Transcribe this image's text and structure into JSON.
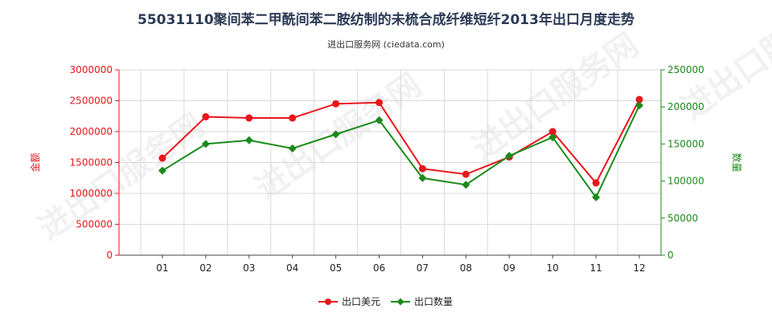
{
  "title": "55031110聚间苯二甲酰间苯二胺纺制的未梳合成纤维短纤2013年出口月度走势",
  "subtitle": "进出口服务网 (ciedata.com)",
  "watermark": "进出口服务网",
  "colors": {
    "value": "#e8161b",
    "quantity": "#1b8a1b",
    "grid": "#d9d9d9",
    "axis": "#444444"
  },
  "chart_data": {
    "type": "line",
    "title": "55031110聚间苯二甲酰间苯二胺纺制的未梳合成纤维短纤2013年出口月度走势",
    "categories": [
      "01",
      "02",
      "03",
      "04",
      "05",
      "06",
      "07",
      "08",
      "09",
      "10",
      "11",
      "12"
    ],
    "ylabel_left": "金额",
    "ylabel_right": "数量",
    "ylim_left": [
      0,
      3000000
    ],
    "ylim_right": [
      0,
      250000
    ],
    "yticks_left": [
      "0",
      "500000",
      "1000000",
      "1500000",
      "2000000",
      "2500000",
      "3000000"
    ],
    "yticks_right": [
      "0",
      "50000",
      "100000",
      "150000",
      "200000",
      "250000"
    ],
    "grid": true,
    "legend_position": "bottom",
    "series": [
      {
        "name": "出口美元",
        "axis": "left",
        "color": "#e8161b",
        "marker": "circle",
        "values": [
          1570000,
          2240000,
          2220000,
          2220000,
          2450000,
          2470000,
          1400000,
          1310000,
          1590000,
          2000000,
          1170000,
          2520000
        ]
      },
      {
        "name": "出口数量",
        "axis": "right",
        "color": "#1b8a1b",
        "marker": "diamond",
        "values": [
          114000,
          150000,
          155000,
          144000,
          163000,
          182000,
          104000,
          95000,
          134000,
          159000,
          78000,
          202000
        ]
      }
    ]
  }
}
